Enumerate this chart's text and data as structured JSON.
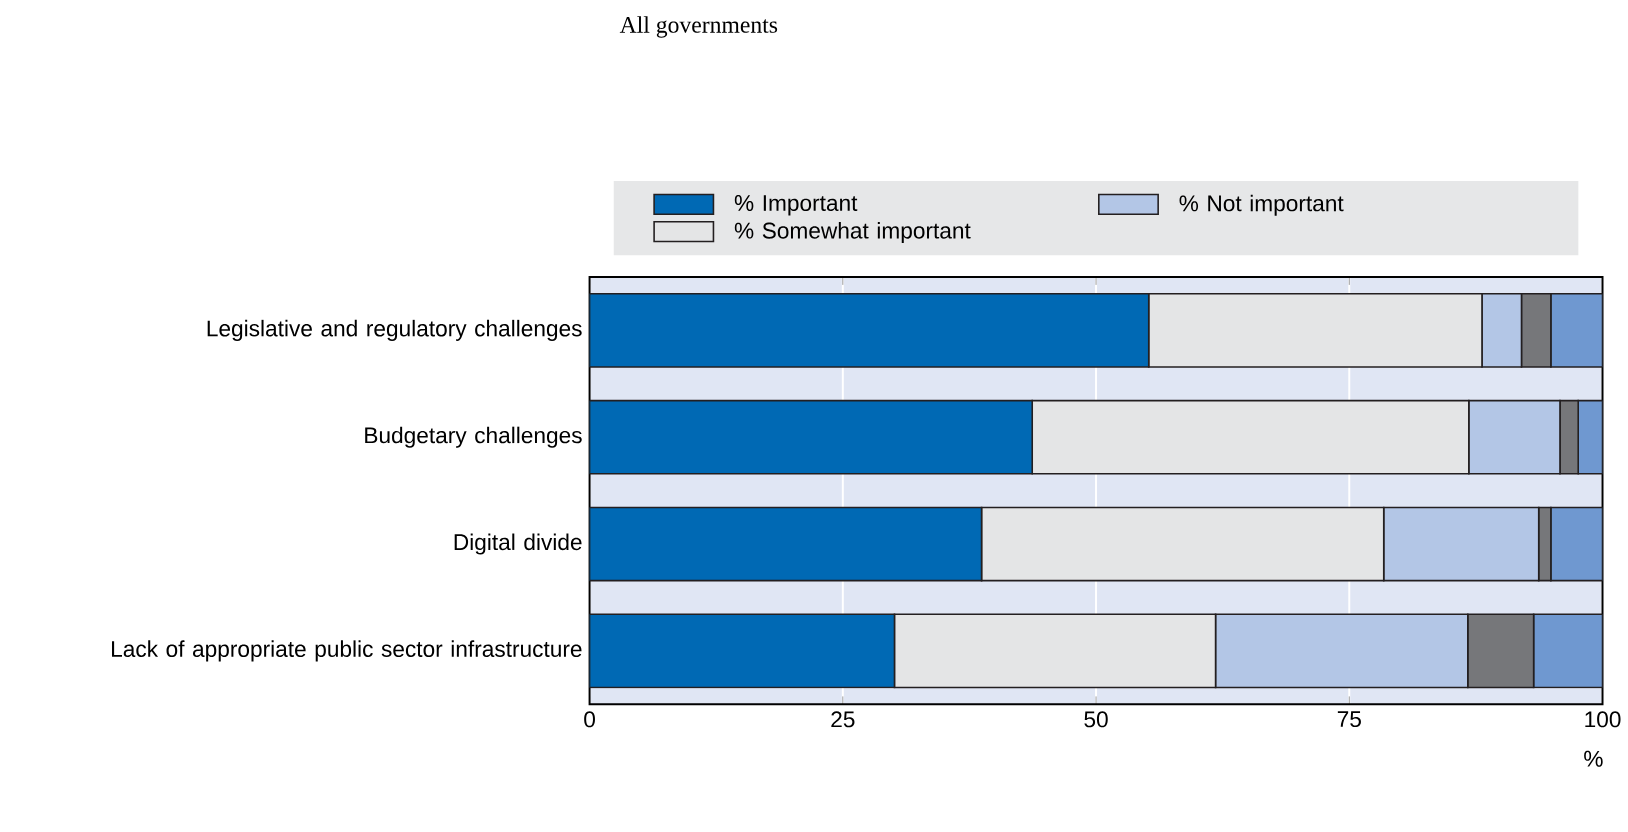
{
  "chart_data": {
    "type": "bar",
    "orientation": "horizontal",
    "stacked": true,
    "subtitle": "All governments",
    "xlabel": "%",
    "categories": [
      "Legislative and regulatory challenges",
      "Budgetary challenges",
      "Digital divide",
      "Lack of appropriate public sector infrastructure"
    ],
    "series": [
      {
        "name": "% Important",
        "color": "#0069b4",
        "values": [
          55.2,
          43.7,
          38.7,
          30.1
        ]
      },
      {
        "name": "% Somewhat important",
        "color": "#e4e5e6",
        "values": [
          32.9,
          43.1,
          39.7,
          31.7
        ]
      },
      {
        "name": "% Not important",
        "color": "#b3c6e6",
        "values": [
          3.9,
          9.0,
          15.3,
          24.9
        ]
      },
      {
        "color": "#76777a",
        "values": [
          2.9,
          1.8,
          1.2,
          6.5
        ]
      },
      {
        "color": "#6f98d0",
        "values": [
          5.1,
          2.4,
          5.1,
          6.8
        ]
      }
    ],
    "xlim": [
      0,
      100
    ],
    "xticks": [
      0,
      25,
      50,
      75,
      100
    ],
    "grid": "x",
    "legend": "top"
  }
}
